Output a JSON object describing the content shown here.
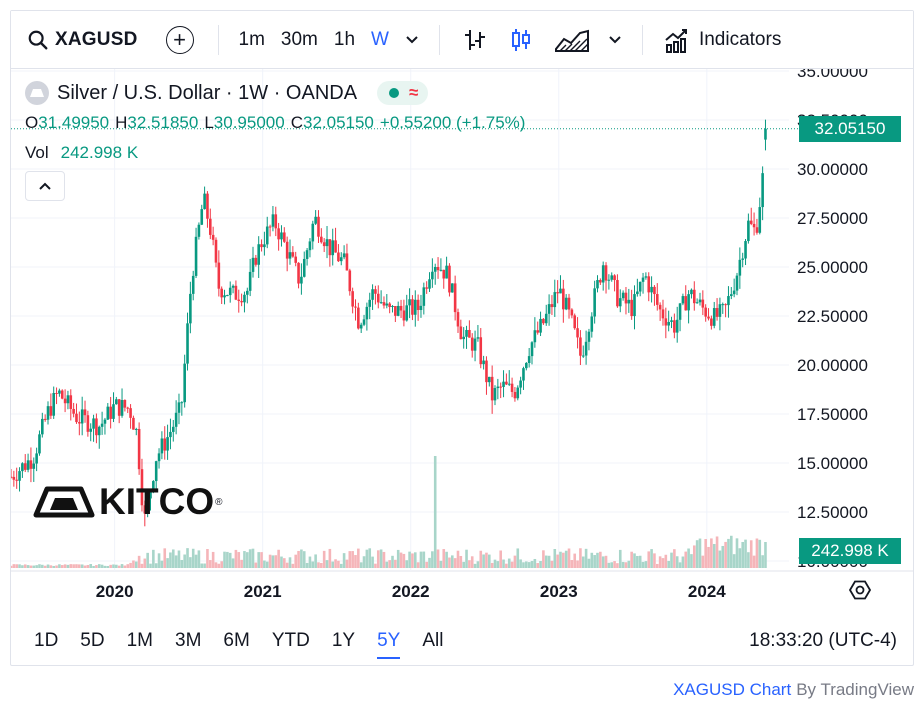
{
  "toolbar": {
    "symbol": "XAGUSD",
    "intervals": [
      "1m",
      "30m",
      "1h",
      "W"
    ],
    "active_interval": "W",
    "indicators_label": "Indicators"
  },
  "legend": {
    "name": "Silver / U.S. Dollar · 1W · OANDA",
    "o_key": "O",
    "o_val": "31.49950",
    "h_key": "H",
    "h_val": "32.51850",
    "l_key": "L",
    "l_val": "30.95000",
    "c_key": "C",
    "c_val": "32.05150",
    "change": "+0.55200 (+1.75%)",
    "vol_key": "Vol",
    "vol_val": "242.998 K"
  },
  "logo_text": "KITCO",
  "last_price_label": "32.05150",
  "last_volume_label": "242.998 K",
  "ranges": [
    "1D",
    "5D",
    "1M",
    "3M",
    "6M",
    "YTD",
    "1Y",
    "5Y",
    "All"
  ],
  "active_range": "5Y",
  "clock": "18:33:20 (UTC-4)",
  "footer": {
    "link": "XAGUSD Chart",
    "by": "By TradingView"
  },
  "colors": {
    "up": "#089981",
    "down": "#f23645",
    "accent": "#2962ff",
    "up_volume": "#a8d5c9",
    "down_volume": "#f5b5b9"
  },
  "chart_data": {
    "type": "candlestick",
    "interval": "1W",
    "y_ticks": [
      "35.00000",
      "32.50000",
      "30.00000",
      "27.50000",
      "25.00000",
      "22.50000",
      "20.00000",
      "17.50000",
      "15.00000",
      "12.50000",
      "10.00000"
    ],
    "ylim": [
      10,
      35
    ],
    "x_ticks": [
      "2020",
      "2021",
      "2022",
      "2023",
      "2024"
    ],
    "x_tick_years": [
      2020,
      2021,
      2022,
      2023,
      2024
    ],
    "x_range": [
      2019.3,
      2024.42
    ],
    "close_path": [
      [
        2019.3,
        14.3
      ],
      [
        2019.45,
        15.3
      ],
      [
        2019.55,
        17.6
      ],
      [
        2019.62,
        18.6
      ],
      [
        2019.75,
        17.3
      ],
      [
        2019.9,
        16.9
      ],
      [
        2020.0,
        17.9
      ],
      [
        2020.1,
        17.8
      ],
      [
        2020.15,
        16.5
      ],
      [
        2020.2,
        12.0
      ],
      [
        2020.28,
        15.3
      ],
      [
        2020.35,
        16.2
      ],
      [
        2020.45,
        17.8
      ],
      [
        2020.52,
        24.5
      ],
      [
        2020.6,
        28.5
      ],
      [
        2020.65,
        26.8
      ],
      [
        2020.7,
        24.0
      ],
      [
        2020.8,
        23.6
      ],
      [
        2020.9,
        23.8
      ],
      [
        2020.95,
        25.5
      ],
      [
        2021.0,
        26.4
      ],
      [
        2021.08,
        27.3
      ],
      [
        2021.15,
        26.1
      ],
      [
        2021.25,
        24.3
      ],
      [
        2021.35,
        27.5
      ],
      [
        2021.45,
        26.0
      ],
      [
        2021.55,
        25.2
      ],
      [
        2021.65,
        22.2
      ],
      [
        2021.75,
        23.8
      ],
      [
        2021.85,
        22.7
      ],
      [
        2021.95,
        22.8
      ],
      [
        2022.05,
        22.9
      ],
      [
        2022.15,
        25.4
      ],
      [
        2022.25,
        24.6
      ],
      [
        2022.35,
        21.4
      ],
      [
        2022.45,
        21.0
      ],
      [
        2022.55,
        18.4
      ],
      [
        2022.62,
        18.9
      ],
      [
        2022.7,
        18.6
      ],
      [
        2022.8,
        20.9
      ],
      [
        2022.9,
        22.2
      ],
      [
        2023.0,
        23.9
      ],
      [
        2023.08,
        22.3
      ],
      [
        2023.15,
        20.4
      ],
      [
        2023.22,
        22.8
      ],
      [
        2023.3,
        25.2
      ],
      [
        2023.4,
        23.4
      ],
      [
        2023.5,
        22.9
      ],
      [
        2023.58,
        24.6
      ],
      [
        2023.68,
        22.8
      ],
      [
        2023.78,
        22.0
      ],
      [
        2023.88,
        23.7
      ],
      [
        2023.97,
        22.9
      ],
      [
        2024.05,
        22.4
      ],
      [
        2024.12,
        22.7
      ],
      [
        2024.2,
        24.6
      ],
      [
        2024.28,
        27.2
      ],
      [
        2024.33,
        26.8
      ],
      [
        2024.37,
        29.0
      ],
      [
        2024.41,
        32.05
      ]
    ],
    "volume_spikes": [
      [
        2022.17,
        "spike"
      ]
    ],
    "last": {
      "open": 31.4995,
      "high": 32.5185,
      "low": 30.95,
      "close": 32.0515,
      "volume": "242.998 K"
    }
  }
}
